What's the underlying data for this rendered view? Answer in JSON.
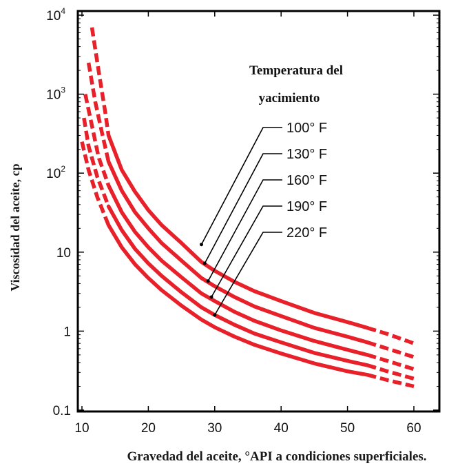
{
  "chart_data": {
    "type": "line",
    "x_axis_title": "Gravedad del aceite, °API a condiciones superficiales.",
    "y_axis_title": "Viscosidad del aceite, cp",
    "x_ticks": [
      {
        "value": 10,
        "label": "10"
      },
      {
        "value": 20,
        "label": "20"
      },
      {
        "value": 30,
        "label": "30"
      },
      {
        "value": 40,
        "label": "40"
      },
      {
        "value": 50,
        "label": "50"
      },
      {
        "value": 60,
        "label": "60"
      }
    ],
    "y_ticks": [
      {
        "value": 0.1,
        "base": "0.1",
        "sup": ""
      },
      {
        "value": 1,
        "base": "1",
        "sup": ""
      },
      {
        "value": 10,
        "base": "10",
        "sup": ""
      },
      {
        "value": 100,
        "base": "10",
        "sup": "2"
      },
      {
        "value": 1000,
        "base": "10",
        "sup": "3"
      },
      {
        "value": 10000,
        "base": "10",
        "sup": "4"
      }
    ],
    "xlim": [
      9,
      64
    ],
    "ylim": [
      0.1,
      10000
    ],
    "y_scale": "log",
    "grid": false,
    "legend_title": [
      "Temperatura del",
      "yacimiento"
    ],
    "line_color": "#e8202a",
    "series": [
      {
        "name": "100° F",
        "solid": [
          [
            14,
            300
          ],
          [
            16,
            110
          ],
          [
            18,
            58
          ],
          [
            20,
            34
          ],
          [
            22,
            22
          ],
          [
            25,
            13
          ],
          [
            28,
            7.5
          ],
          [
            30,
            5.8
          ],
          [
            33,
            4.2
          ],
          [
            36,
            3.2
          ],
          [
            40,
            2.4
          ],
          [
            45,
            1.7
          ],
          [
            50,
            1.3
          ],
          [
            53,
            1.1
          ]
        ],
        "dashed": [
          [
            11.5,
            7000
          ],
          [
            12.5,
            2000
          ],
          [
            13.5,
            600
          ],
          [
            14,
            300
          ]
        ],
        "dashed_end": [
          [
            53,
            1.1
          ],
          [
            56,
            0.92
          ],
          [
            60,
            0.7
          ]
        ],
        "pointer": [
          28,
          12.5
        ]
      },
      {
        "name": "130° F",
        "solid": [
          [
            14,
            140
          ],
          [
            16,
            60
          ],
          [
            18,
            32
          ],
          [
            20,
            20
          ],
          [
            22,
            13
          ],
          [
            25,
            7.8
          ],
          [
            28,
            4.7
          ],
          [
            30,
            3.7
          ],
          [
            33,
            2.7
          ],
          [
            36,
            2.05
          ],
          [
            40,
            1.55
          ],
          [
            45,
            1.1
          ],
          [
            50,
            0.85
          ],
          [
            53,
            0.72
          ]
        ],
        "dashed": [
          [
            11,
            2500
          ],
          [
            12,
            800
          ],
          [
            13,
            330
          ],
          [
            14,
            140
          ]
        ],
        "dashed_end": [
          [
            53,
            0.72
          ],
          [
            56,
            0.6
          ],
          [
            60,
            0.47
          ]
        ],
        "pointer": [
          28.5,
          7.2
        ]
      },
      {
        "name": "160° F",
        "solid": [
          [
            14,
            70
          ],
          [
            16,
            32
          ],
          [
            18,
            18
          ],
          [
            20,
            11.5
          ],
          [
            22,
            7.8
          ],
          [
            25,
            4.8
          ],
          [
            28,
            3.0
          ],
          [
            30,
            2.4
          ],
          [
            33,
            1.75
          ],
          [
            36,
            1.35
          ],
          [
            40,
            1.02
          ],
          [
            45,
            0.75
          ],
          [
            50,
            0.58
          ],
          [
            53,
            0.5
          ]
        ],
        "dashed": [
          [
            10.5,
            1000
          ],
          [
            11.5,
            400
          ],
          [
            12.5,
            160
          ],
          [
            14,
            70
          ]
        ],
        "dashed_end": [
          [
            53,
            0.5
          ],
          [
            56,
            0.42
          ],
          [
            60,
            0.33
          ]
        ],
        "pointer": [
          29,
          4.3
        ]
      },
      {
        "name": "190° F",
        "solid": [
          [
            14,
            38
          ],
          [
            16,
            19
          ],
          [
            18,
            11
          ],
          [
            20,
            7.2
          ],
          [
            22,
            5.0
          ],
          [
            25,
            3.1
          ],
          [
            28,
            2.0
          ],
          [
            30,
            1.6
          ],
          [
            33,
            1.2
          ],
          [
            36,
            0.93
          ],
          [
            40,
            0.72
          ],
          [
            45,
            0.53
          ],
          [
            50,
            0.42
          ],
          [
            53,
            0.37
          ]
        ],
        "dashed": [
          [
            10.3,
            500
          ],
          [
            11,
            220
          ],
          [
            12.3,
            90
          ],
          [
            14,
            38
          ]
        ],
        "dashed_end": [
          [
            53,
            0.37
          ],
          [
            56,
            0.31
          ],
          [
            60,
            0.25
          ]
        ],
        "pointer": [
          29.5,
          2.7
        ]
      },
      {
        "name": "220° F",
        "solid": [
          [
            14,
            22
          ],
          [
            16,
            11.5
          ],
          [
            18,
            7.0
          ],
          [
            20,
            4.7
          ],
          [
            22,
            3.3
          ],
          [
            25,
            2.1
          ],
          [
            28,
            1.4
          ],
          [
            30,
            1.12
          ],
          [
            33,
            0.85
          ],
          [
            36,
            0.67
          ],
          [
            40,
            0.52
          ],
          [
            45,
            0.39
          ],
          [
            50,
            0.31
          ],
          [
            53,
            0.28
          ]
        ],
        "dashed": [
          [
            10,
            250
          ],
          [
            11,
            110
          ],
          [
            12.3,
            50
          ],
          [
            14,
            22
          ]
        ],
        "dashed_end": [
          [
            53,
            0.28
          ],
          [
            56,
            0.24
          ],
          [
            60,
            0.2
          ]
        ],
        "pointer": [
          30,
          1.6
        ]
      }
    ]
  }
}
